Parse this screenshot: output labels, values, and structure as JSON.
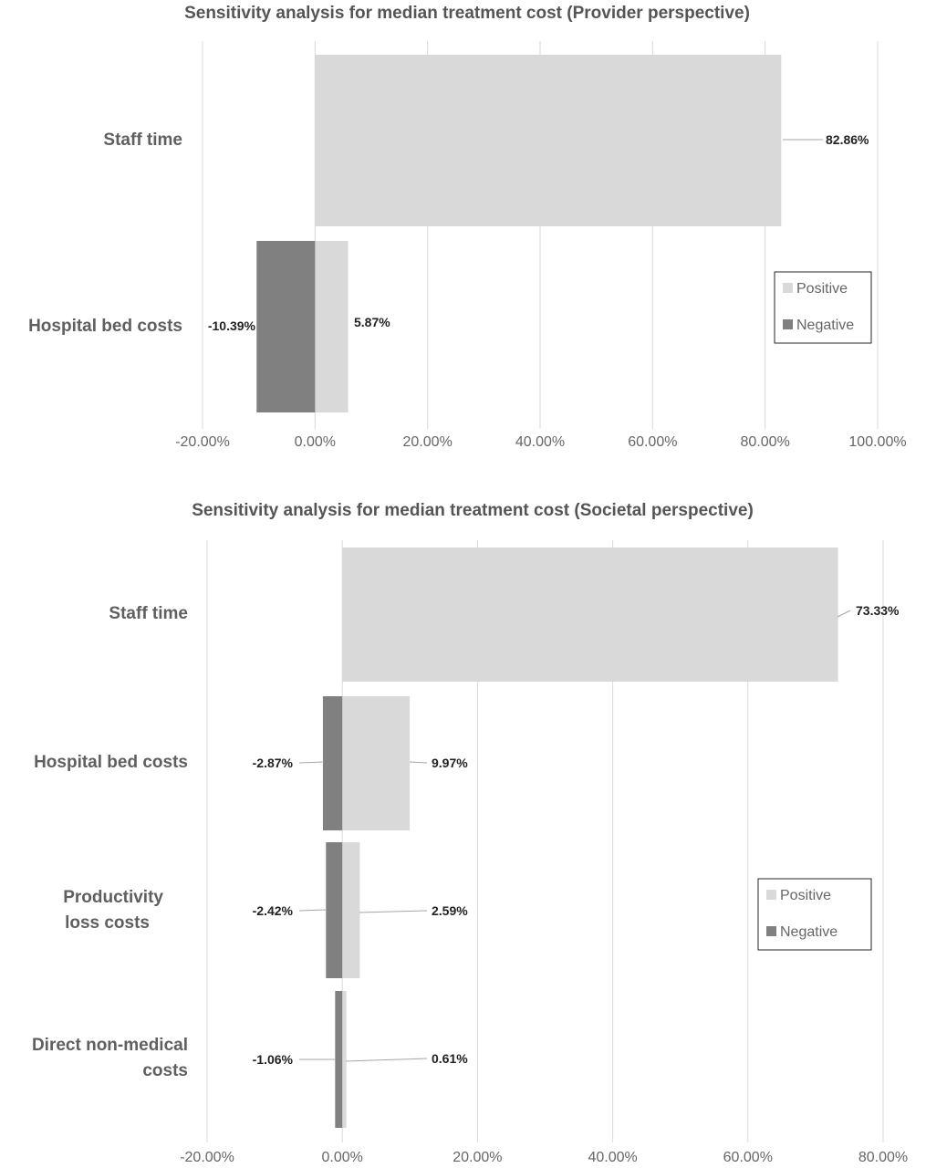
{
  "colors": {
    "positive": "#d9d9d9",
    "negative": "#808080"
  },
  "chart_data": [
    {
      "type": "bar",
      "orientation": "horizontal",
      "stacking": "diverging",
      "title": "Sensitivity analysis for median treatment cost (Provider perspective)",
      "categories": [
        "Staff time",
        "Hospital bed costs"
      ],
      "series": [
        {
          "name": "Positive",
          "values": [
            82.86,
            5.87
          ],
          "labels": [
            "82.86%",
            "5.87%"
          ]
        },
        {
          "name": "Negative",
          "values": [
            null,
            -10.39
          ],
          "labels": [
            "",
            "-10.39%"
          ]
        }
      ],
      "xlim": [
        -20,
        100
      ],
      "xticks": [
        "-20.00%",
        "0.00%",
        "20.00%",
        "40.00%",
        "60.00%",
        "80.00%",
        "100.00%"
      ],
      "grid": true,
      "legend": "right"
    },
    {
      "type": "bar",
      "orientation": "horizontal",
      "stacking": "diverging",
      "title": "Sensitivity analysis for median treatment cost (Societal perspective)",
      "categories": [
        "Staff time",
        "Hospital bed costs",
        "Productivity\nloss costs",
        "Direct non-medical\ncosts"
      ],
      "series": [
        {
          "name": "Positive",
          "values": [
            73.33,
            9.97,
            2.59,
            0.61
          ],
          "labels": [
            "73.33%",
            "9.97%",
            "2.59%",
            "0.61%"
          ]
        },
        {
          "name": "Negative",
          "values": [
            null,
            -2.87,
            -2.42,
            -1.06
          ],
          "labels": [
            "",
            "-2.87%",
            "-2.42%",
            "-1.06%"
          ]
        }
      ],
      "xlim": [
        -20,
        80
      ],
      "xticks": [
        "-20.00%",
        "0.00%",
        "20.00%",
        "40.00%",
        "60.00%",
        "80.00%"
      ],
      "grid": true,
      "legend": "right"
    }
  ]
}
